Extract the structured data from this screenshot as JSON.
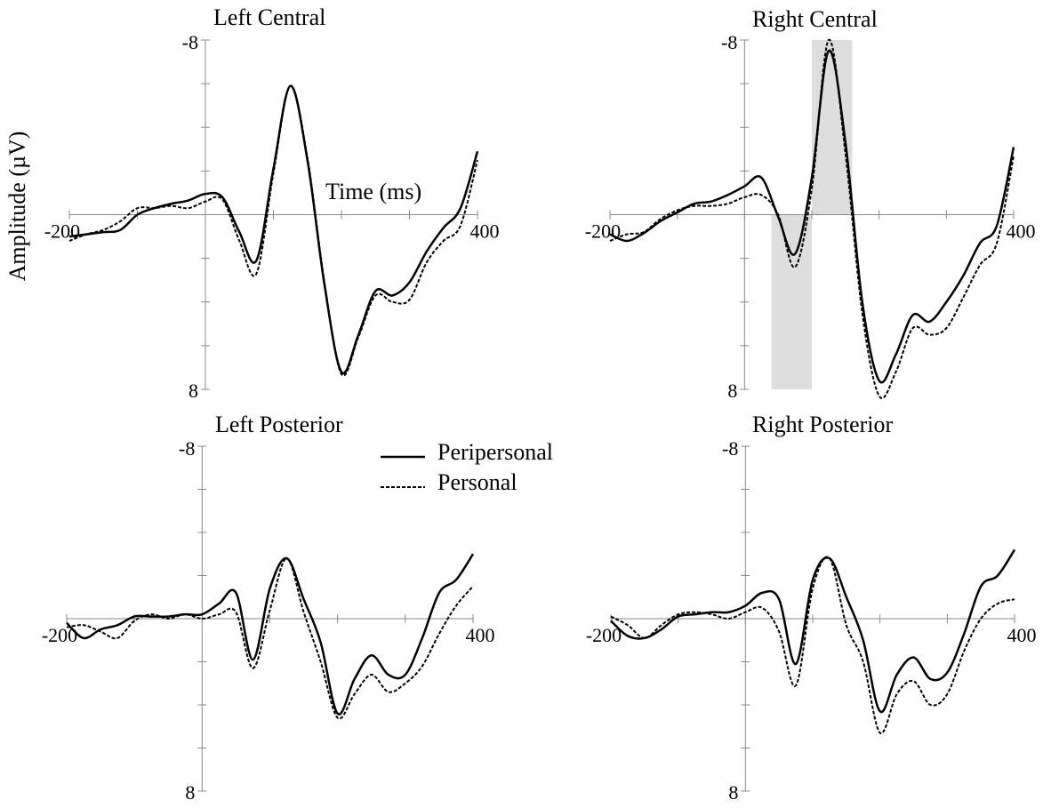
{
  "chart_data": [
    {
      "type": "line",
      "title": "Left Central",
      "xlabel": "Time (ms)",
      "ylabel": "Amplitude (µV)",
      "x": [
        -200,
        -175,
        -150,
        -125,
        -100,
        -75,
        -50,
        -25,
        0,
        25,
        50,
        75,
        100,
        125,
        150,
        175,
        200,
        225,
        250,
        275,
        300,
        325,
        350,
        375,
        400
      ],
      "series": [
        {
          "name": "Peripersonal",
          "color": "#000000",
          "style": "solid",
          "values": [
            1.0,
            0.9,
            0.8,
            0.7,
            0.0,
            -0.3,
            -0.5,
            -0.65,
            -0.95,
            -0.8,
            0.8,
            2.1,
            -2.1,
            -5.9,
            -2.5,
            3.2,
            7.2,
            5.5,
            3.5,
            3.7,
            3.1,
            1.7,
            0.6,
            -0.3,
            -2.9
          ]
        },
        {
          "name": "Personal",
          "color": "#000000",
          "style": "dashed",
          "values": [
            1.2,
            0.9,
            0.7,
            0.3,
            -0.3,
            -0.3,
            -0.4,
            -0.3,
            -0.6,
            -0.7,
            1.2,
            2.7,
            -1.9,
            -5.9,
            -2.6,
            3.1,
            7.3,
            5.6,
            3.7,
            4.0,
            3.9,
            2.2,
            1.2,
            0.5,
            -2.5
          ]
        }
      ],
      "xlim": [
        -200,
        400
      ],
      "ylim": [
        -8,
        8
      ],
      "y_inverted": true,
      "xticks": [
        -200,
        400
      ],
      "yticks": [
        -8,
        8
      ],
      "xminorticks": [
        -100,
        0,
        100,
        200,
        300
      ],
      "yminorticks": [
        -6,
        -4,
        -2,
        2,
        4,
        6
      ],
      "legend": false
    },
    {
      "type": "line",
      "title": "Right Central",
      "x": [
        -200,
        -175,
        -150,
        -125,
        -100,
        -75,
        -50,
        -25,
        0,
        25,
        50,
        75,
        100,
        125,
        150,
        175,
        200,
        225,
        250,
        275,
        300,
        325,
        350,
        375,
        400
      ],
      "series": [
        {
          "name": "Peripersonal",
          "color": "#000000",
          "style": "solid",
          "values": [
            0.9,
            1.2,
            0.85,
            0.3,
            -0.1,
            -0.5,
            -0.6,
            -0.9,
            -1.3,
            -1.7,
            0.1,
            1.8,
            -1.7,
            -7.5,
            -3.3,
            4.0,
            7.6,
            6.4,
            4.6,
            4.9,
            4.0,
            2.8,
            1.3,
            0.5,
            -3.1
          ]
        },
        {
          "name": "Personal",
          "color": "#000000",
          "style": "dashed",
          "values": [
            1.2,
            0.9,
            0.8,
            0.2,
            -0.2,
            -0.4,
            -0.4,
            -0.5,
            -0.8,
            -0.9,
            0.0,
            2.4,
            -1.2,
            -8.0,
            -2.8,
            4.5,
            8.3,
            7.2,
            5.2,
            5.5,
            5.2,
            3.8,
            2.3,
            1.3,
            -2.7
          ]
        }
      ],
      "xlim": [
        -200,
        400
      ],
      "ylim": [
        -8,
        8
      ],
      "y_inverted": true,
      "xticks": [
        -200,
        400
      ],
      "yticks": [
        -8,
        8
      ],
      "xminorticks": [
        -100,
        0,
        100,
        200,
        300
      ],
      "yminorticks": [
        -6,
        -4,
        -2,
        2,
        4,
        6
      ],
      "legend": false,
      "shaded_regions": [
        {
          "x": [
            40,
            100
          ],
          "y": [
            0,
            8
          ],
          "color": "#dddddd"
        },
        {
          "x": [
            100,
            160
          ],
          "y": [
            -8,
            0
          ],
          "color": "#dddddd"
        }
      ]
    },
    {
      "type": "line",
      "title": "Left Posterior",
      "x": [
        -200,
        -175,
        -150,
        -125,
        -100,
        -75,
        -50,
        -25,
        0,
        25,
        50,
        75,
        100,
        125,
        150,
        175,
        200,
        225,
        250,
        275,
        300,
        325,
        350,
        375,
        400
      ],
      "series": [
        {
          "name": "Peripersonal",
          "color": "#000000",
          "style": "solid",
          "values": [
            0.2,
            0.9,
            0.5,
            0.3,
            -0.1,
            -0.1,
            -0.1,
            -0.2,
            -0.2,
            -0.7,
            -1.2,
            1.9,
            -1.4,
            -2.8,
            -0.9,
            1.1,
            4.4,
            2.8,
            1.7,
            2.6,
            2.6,
            0.9,
            -1.2,
            -1.8,
            -3.0
          ]
        },
        {
          "name": "Personal",
          "color": "#000000",
          "style": "dashed",
          "values": [
            0.4,
            0.3,
            0.6,
            0.9,
            0.1,
            -0.2,
            0.0,
            -0.2,
            0.0,
            -0.2,
            -0.3,
            2.3,
            -0.4,
            -2.8,
            -0.3,
            2.0,
            4.6,
            3.5,
            2.6,
            3.4,
            3.0,
            2.2,
            0.7,
            -0.6,
            -1.5
          ]
        }
      ],
      "xlim": [
        -200,
        400
      ],
      "ylim": [
        -8,
        8
      ],
      "y_inverted": true,
      "xticks": [
        -200,
        400
      ],
      "yticks": [
        -8,
        8
      ],
      "xminorticks": [
        -100,
        0,
        100,
        200,
        300
      ],
      "yminorticks": [
        -6,
        -4,
        -2,
        2,
        4,
        6
      ],
      "legend": true
    },
    {
      "type": "line",
      "title": "Right Posterior",
      "x": [
        -200,
        -175,
        -150,
        -125,
        -100,
        -75,
        -50,
        -25,
        0,
        25,
        50,
        75,
        100,
        125,
        150,
        175,
        200,
        225,
        250,
        275,
        300,
        325,
        350,
        375,
        400
      ],
      "series": [
        {
          "name": "Peripersonal",
          "color": "#000000",
          "style": "solid",
          "values": [
            0.1,
            0.8,
            0.9,
            0.5,
            -0.1,
            -0.2,
            -0.3,
            -0.3,
            -0.6,
            -1.2,
            -0.9,
            2.1,
            -1.8,
            -2.8,
            -1.0,
            1.0,
            4.3,
            2.6,
            1.8,
            2.8,
            2.5,
            0.7,
            -1.5,
            -2.0,
            -3.2
          ]
        },
        {
          "name": "Personal",
          "color": "#000000",
          "style": "dashed",
          "values": [
            -0.1,
            0.3,
            0.9,
            0.3,
            -0.2,
            -0.3,
            -0.2,
            0.0,
            -0.3,
            -0.5,
            0.6,
            3.1,
            -1.4,
            -2.8,
            0.3,
            2.0,
            5.3,
            3.5,
            2.9,
            4.0,
            3.5,
            1.5,
            0.0,
            -0.7,
            -0.9
          ]
        }
      ],
      "xlim": [
        -200,
        400
      ],
      "ylim": [
        -8,
        8
      ],
      "y_inverted": true,
      "xticks": [
        -200,
        400
      ],
      "yticks": [
        -8,
        8
      ],
      "xminorticks": [
        -100,
        0,
        100,
        200,
        300
      ],
      "yminorticks": [
        -6,
        -4,
        -2,
        2,
        4,
        6
      ],
      "legend": false
    }
  ]
}
